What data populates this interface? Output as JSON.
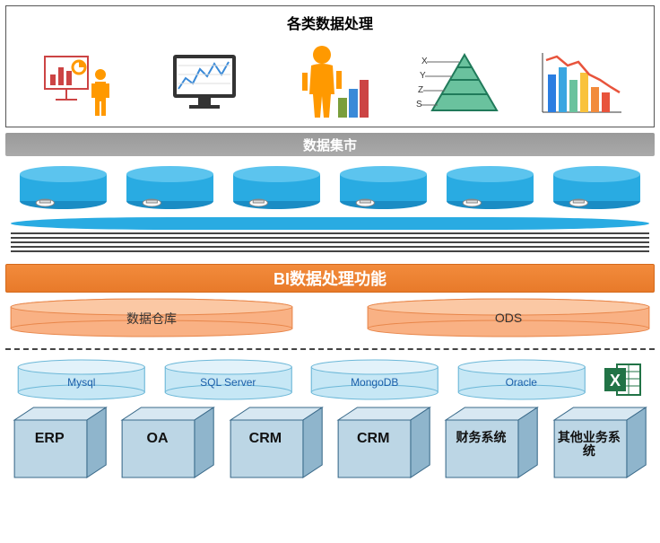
{
  "top": {
    "title": "各类数据处理"
  },
  "data_mart_bar": "数据集市",
  "bi_bar": "BI数据处理功能",
  "warehouses": {
    "dw": "数据仓库",
    "ods": "ODS"
  },
  "source_dbs": [
    "Mysql",
    "SQL Server",
    "MongoDB",
    "Oracle"
  ],
  "systems": [
    "ERP",
    "OA",
    "CRM",
    "CRM",
    "财务系统",
    "其他业务系统"
  ],
  "colors": {
    "blue_db": "#29abe2",
    "blue_db_dark": "#1a8cc4",
    "orange": "#f28b3c",
    "orange_cyl": "#f9b184",
    "orange_cyl_edge": "#e8864a",
    "cyan_cyl": "#c6e7f5",
    "cyan_cyl_edge": "#6db8d8",
    "cube_face": "#bcd6e5",
    "cube_side": "#8fb5cc",
    "cube_top": "#d8e8f2",
    "cube_edge": "#3a6a8a",
    "gray_bar": "#999",
    "excel_green": "#217346"
  },
  "icons": {
    "presenter_bar": "#c44",
    "presenter_pie": "#f90",
    "monitor_line": "#3a8ad8",
    "businessman": "#f90",
    "pyramid_outer": "#207a5a",
    "pyramid_fill": "#6ac29e",
    "bars": [
      "#2a7de1",
      "#3aa6e1",
      "#6ac29e",
      "#f9c23c",
      "#f28b3c",
      "#e8543c"
    ],
    "trend_line": "#e8543c"
  }
}
